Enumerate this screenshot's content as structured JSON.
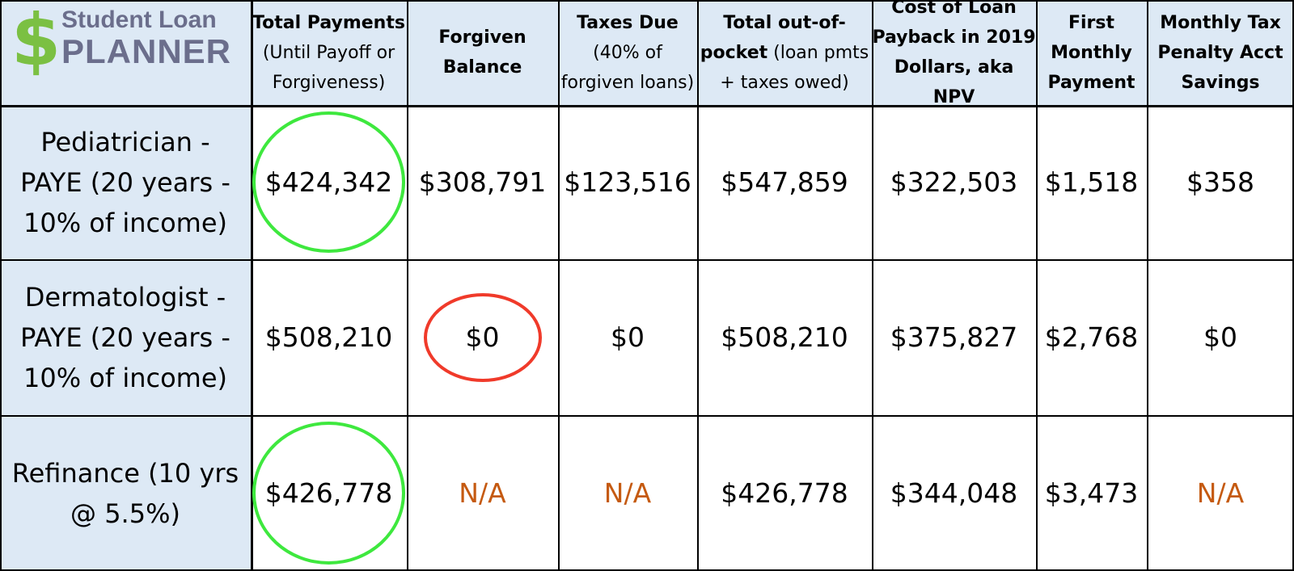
{
  "logo": {
    "line1": "Student Loan",
    "line2": "PLANNER",
    "symbol": "$"
  },
  "columns": [
    {
      "id": "total_payments",
      "lines": [
        {
          "text": "Total Payments",
          "bold": true
        },
        {
          "text": "(Until Payoff or",
          "bold": false
        },
        {
          "text": "Forgiveness)",
          "bold": false
        }
      ]
    },
    {
      "id": "forgiven_balance",
      "lines": [
        {
          "text": "Forgiven",
          "bold": true
        },
        {
          "text": "Balance",
          "bold": true
        }
      ]
    },
    {
      "id": "taxes_due",
      "lines": [
        {
          "text": "Taxes Due",
          "bold": true
        },
        {
          "text": "(40% of",
          "bold": false
        },
        {
          "text": "forgiven loans)",
          "bold": false
        }
      ]
    },
    {
      "id": "total_out_of_pocket",
      "lines": [
        {
          "text": "Total out-of-",
          "bold": true
        },
        {
          "text": "pocket",
          "bold": true,
          "suffix": " (loan pmts"
        },
        {
          "text": "+ taxes owed)",
          "bold": false
        }
      ]
    },
    {
      "id": "npv",
      "lines": [
        {
          "text": "Cost of Loan",
          "bold": true
        },
        {
          "text": "Payback in 2019",
          "bold": true
        },
        {
          "text": "Dollars, aka NPV",
          "bold": true
        }
      ]
    },
    {
      "id": "first_monthly_payment",
      "lines": [
        {
          "text": "First",
          "bold": true
        },
        {
          "text": "Monthly",
          "bold": true
        },
        {
          "text": "Payment",
          "bold": true
        }
      ]
    },
    {
      "id": "tax_penalty_savings",
      "lines": [
        {
          "text": "Monthly Tax",
          "bold": true
        },
        {
          "text": "Penalty Acct",
          "bold": true
        },
        {
          "text": "Savings",
          "bold": true
        }
      ]
    }
  ],
  "rows": [
    {
      "label_lines": [
        "Pediatrician -",
        "PAYE (20 years -",
        "10% of income)"
      ],
      "values": [
        "$424,342",
        "$308,791",
        "$123,516",
        "$547,859",
        "$322,503",
        "$1,518",
        "$358"
      ]
    },
    {
      "label_lines": [
        "Dermatologist  -",
        "PAYE (20 years -",
        "10% of income)"
      ],
      "values": [
        "$508,210",
        "$0",
        "$0",
        "$508,210",
        "$375,827",
        "$2,768",
        "$0"
      ]
    },
    {
      "label_lines": [
        "Refinance (10 yrs",
        "@ 5.5%)"
      ],
      "values": [
        "$426,778",
        "N/A",
        "N/A",
        "$426,778",
        "$344,048",
        "$3,473",
        "N/A"
      ]
    }
  ],
  "highlights": [
    {
      "row": 0,
      "col": 0,
      "color": "#3ee83e"
    },
    {
      "row": 1,
      "col": 1,
      "color": "#f03a2a"
    },
    {
      "row": 2,
      "col": 0,
      "color": "#3ee83e"
    }
  ],
  "colors": {
    "header_bg": "#dde9f5",
    "na_text": "#c55a11",
    "logo_dollar": "#7bc043",
    "logo_text": "#6b6e8c"
  }
}
